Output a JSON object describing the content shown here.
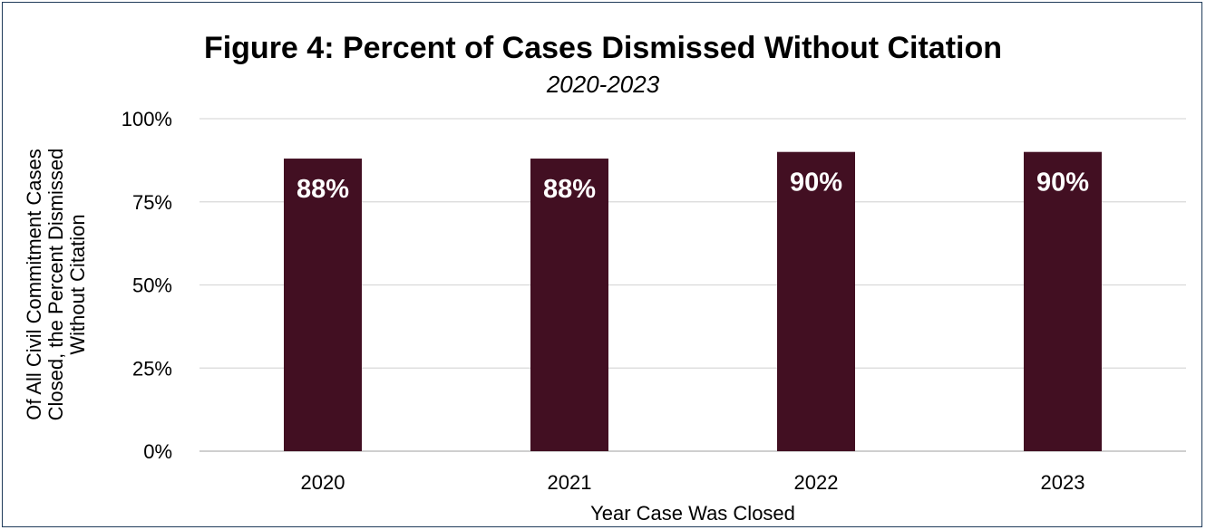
{
  "colors": {
    "bar": "#420f22",
    "grid": "#d9d9d9",
    "axis": "#bfbfbf",
    "border": "#1f3b5a",
    "bar_label": "#ffffff"
  },
  "chart_data": {
    "type": "bar",
    "title": "Figure 4: Percent of Cases Dismissed Without Citation",
    "subtitle": "2020-2023",
    "xlabel": "Year Case Was Closed",
    "ylabel_lines": [
      "Of All Civil Commitment Cases",
      "Closed, the Percent Dismissed",
      "Without Citation"
    ],
    "categories": [
      "2020",
      "2021",
      "2022",
      "2023"
    ],
    "values": [
      88,
      88,
      90,
      90
    ],
    "data_labels": [
      "88%",
      "88%",
      "90%",
      "90%"
    ],
    "ylim": [
      0,
      100
    ],
    "yticks": [
      0,
      25,
      50,
      75,
      100
    ],
    "ytick_labels": [
      "0%",
      "25%",
      "50%",
      "75%",
      "100%"
    ],
    "grid": true,
    "legend": "none"
  }
}
